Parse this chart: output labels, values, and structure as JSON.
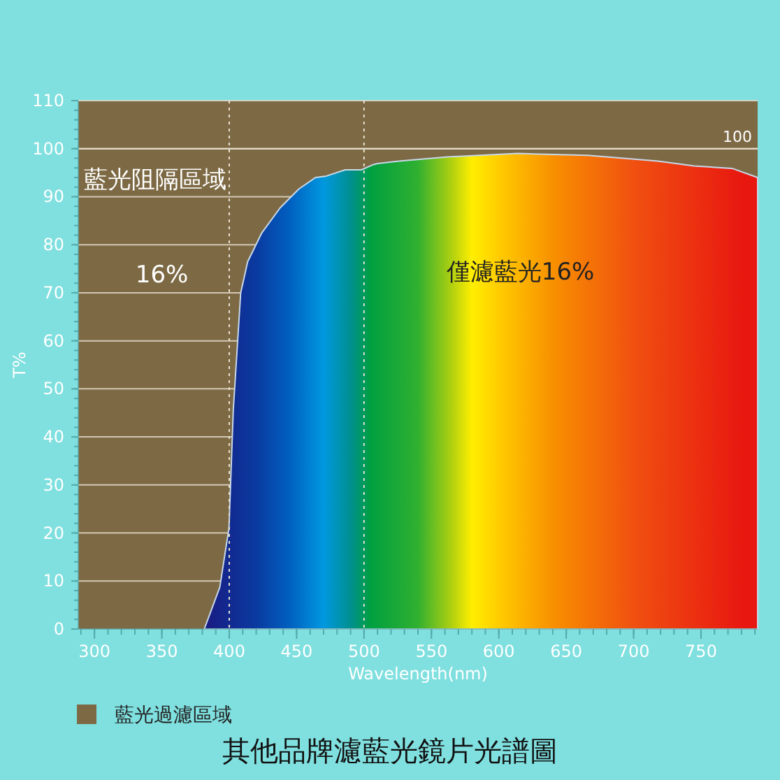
{
  "chart_data": {
    "type": "area",
    "title": "其他品牌濾藍光鏡片光譜圖",
    "xlabel": "Wavelength(nm)",
    "ylabel": "T%",
    "xlim": [
      288,
      792
    ],
    "xticks": [
      300,
      350,
      400,
      450,
      500,
      550,
      600,
      650,
      700,
      750
    ],
    "ylim": [
      0,
      110
    ],
    "yticks": [
      0,
      10,
      20,
      30,
      40,
      50,
      60,
      70,
      80,
      90,
      100,
      110
    ],
    "grid": "y",
    "series": [
      {
        "x": [
          381.5,
          393,
          399.8,
          403,
          408.5,
          413.7,
          424,
          437.8,
          451.6,
          464,
          472,
          486,
          498,
          507,
          510,
          526,
          562,
          614,
          666,
          718,
          745,
          773,
          792
        ],
        "values": [
          0,
          8.7,
          21,
          45.6,
          70,
          76.5,
          82.4,
          87.7,
          91.6,
          94,
          94.3,
          95.6,
          95.6,
          96.7,
          96.9,
          97.4,
          98.3,
          99,
          98.6,
          97.4,
          96.4,
          95.9,
          94
        ]
      }
    ],
    "bands": [
      {
        "axis": "x",
        "from": 288,
        "to": 792,
        "label": "藍光過濾區域",
        "color": "#7d6a45"
      }
    ],
    "ref_lines": [
      {
        "axis": "x",
        "value": 400,
        "line_style": "dotted"
      },
      {
        "axis": "x",
        "value": 500,
        "line_style": "dotted"
      },
      {
        "axis": "y",
        "value": 100,
        "label": "100"
      }
    ],
    "annotations": [
      "藍光阻隔區域",
      "16%",
      "僅濾藍光16%"
    ],
    "legend": "bottom"
  }
}
